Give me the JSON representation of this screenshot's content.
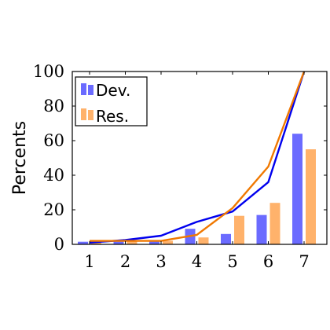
{
  "chart_data": {
    "type": "bar",
    "ylabel": "Percents",
    "xlabel": "",
    "categories": [
      "1",
      "2",
      "3",
      "4",
      "5",
      "6",
      "7"
    ],
    "ylim": [
      0,
      100
    ],
    "yticks": [
      "0",
      "20",
      "40",
      "60",
      "80",
      "100"
    ],
    "legend_placement": "top-left",
    "grid": false,
    "series": [
      {
        "name": "Dev.",
        "kind": "bar",
        "color": "#6b6bff",
        "values": [
          1.5,
          2,
          2,
          9,
          6,
          17,
          64
        ]
      },
      {
        "name": "Res.",
        "kind": "bar",
        "color": "#ffb26b",
        "values": [
          2,
          2,
          2,
          4,
          16.5,
          24,
          55
        ]
      }
    ],
    "lines": [
      {
        "name": "",
        "color": "#0000ee",
        "values": [
          1,
          2.5,
          5,
          13,
          19,
          36,
          100
        ]
      },
      {
        "name": "",
        "color": "#f07800",
        "values": [
          2,
          2,
          2,
          5.5,
          21,
          45,
          100
        ]
      }
    ]
  }
}
